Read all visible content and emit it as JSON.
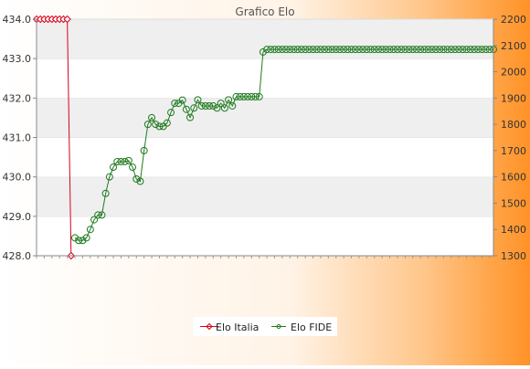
{
  "chart_data": {
    "type": "line",
    "title": "Grafico Elo",
    "y_left": {
      "min": 428.0,
      "max": 434.0,
      "ticks": [
        "428.0",
        "429.0",
        "430.0",
        "431.0",
        "432.0",
        "433.0",
        "434.0"
      ]
    },
    "y_right": {
      "min": 1300,
      "max": 2200,
      "ticks": [
        "1300",
        "1400",
        "1500",
        "1600",
        "1700",
        "1800",
        "1900",
        "2000",
        "2100",
        "2200"
      ]
    },
    "grid": "horizontal-bands",
    "legend_position": "bottom",
    "x_label_note": "x-axis date labels rotated and unreadable (overlapping)",
    "series": [
      {
        "name": "Elo Italia",
        "axis": "left",
        "color": "#d9001b",
        "marker": "diamond",
        "values": [
          434,
          434,
          434,
          434,
          434,
          434,
          434,
          434,
          434,
          428
        ]
      },
      {
        "name": "Elo FIDE",
        "axis": "right",
        "color": "#1f7a1f",
        "marker": "circle",
        "values": [
          null,
          null,
          null,
          null,
          null,
          null,
          null,
          null,
          null,
          null,
          1368,
          1358,
          1358,
          1368,
          1400,
          1437,
          1455,
          1455,
          1537,
          1600,
          1637,
          1658,
          1658,
          1658,
          1662,
          1637,
          1592,
          1583,
          1700,
          1800,
          1825,
          1800,
          1792,
          1792,
          1805,
          1845,
          1880,
          1880,
          1892,
          1857,
          1826,
          1862,
          1893,
          1870,
          1870,
          1870,
          1870,
          1862,
          1880,
          1862,
          1893,
          1870,
          1905,
          1905,
          1905,
          1905,
          1905,
          1905,
          1905,
          2075,
          2085,
          2085,
          2085,
          2085,
          2085,
          2085,
          2085,
          2085,
          2085,
          2085,
          2085,
          2085,
          2085,
          2085,
          2085,
          2085,
          2085,
          2085,
          2085,
          2085,
          2085,
          2085,
          2085,
          2085,
          2085,
          2085,
          2085,
          2085,
          2085,
          2085,
          2085,
          2085,
          2085,
          2085,
          2085,
          2085,
          2085,
          2085,
          2085,
          2085,
          2085,
          2085,
          2085,
          2085,
          2085,
          2085,
          2085,
          2085,
          2085,
          2085,
          2085,
          2085,
          2085,
          2085,
          2085,
          2085,
          2085,
          2085,
          2085,
          2085
        ]
      }
    ]
  }
}
